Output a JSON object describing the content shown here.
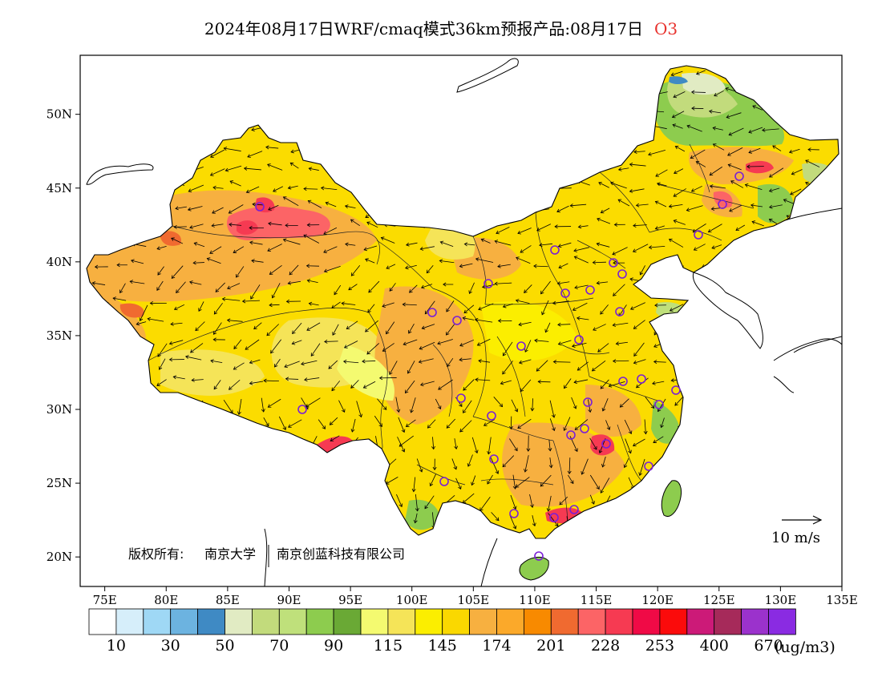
{
  "title": {
    "main": "2024年08月17日WRF/cmaq模式36km预报产品:08月17日",
    "species": "O3"
  },
  "colors": {
    "species": "#e8322d",
    "frame": "#000000",
    "station": "#7a1fd6"
  },
  "axes": {
    "lon_range": [
      73,
      135
    ],
    "lat_range": [
      18,
      54
    ],
    "lon_ticks": [
      "75E",
      "80E",
      "85E",
      "90E",
      "95E",
      "100E",
      "105E",
      "110E",
      "115E",
      "120E",
      "125E",
      "130E",
      "135E"
    ],
    "lat_ticks": [
      "20N",
      "25N",
      "30N",
      "35N",
      "40N",
      "45N",
      "50N"
    ]
  },
  "colorbar": {
    "colors": [
      "#ffffff",
      "#d6eefa",
      "#9fd8f5",
      "#6cb3e0",
      "#3f8ac4",
      "#e1ebc3",
      "#c2db7c",
      "#bfe07b",
      "#8dcc4e",
      "#6aa935",
      "#f4fa70",
      "#f5e458",
      "#fbee00",
      "#fad800",
      "#f7b040",
      "#fba92a",
      "#f88a00",
      "#f06a30",
      "#fc6466",
      "#f63a52",
      "#f00a46",
      "#fb0b0b",
      "#cc1a78",
      "#a62a5a",
      "#9b32cc",
      "#8a2be2"
    ],
    "labels": [
      "10",
      "30",
      "50",
      "70",
      "90",
      "115",
      "145",
      "174",
      "201",
      "228",
      "253",
      "400",
      "670"
    ],
    "unit": "(ug/m3)"
  },
  "vector_legend": "10 m/s",
  "copyright": {
    "prefix": "版权所有:",
    "org1": "南京大学",
    "org2": "南京创蓝科技有限公司"
  }
}
